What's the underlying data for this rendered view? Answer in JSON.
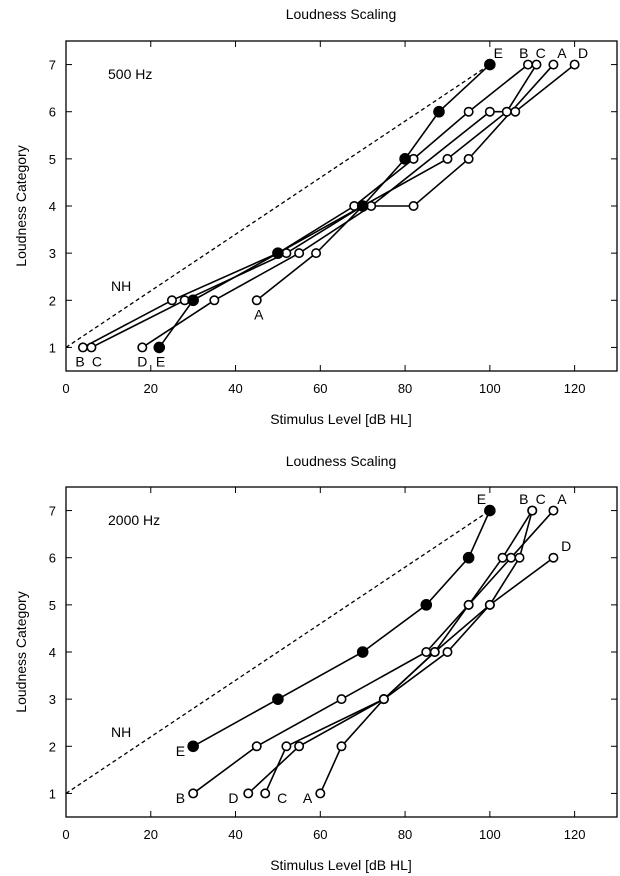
{
  "chart_data": [
    {
      "type": "line",
      "title": "Loudness Scaling",
      "subtitle": "500 Hz",
      "xlabel": "Stimulus Level [dB HL]",
      "ylabel": "Loudness Category",
      "xlim": [
        0,
        130
      ],
      "ylim": [
        0.5,
        7.5
      ],
      "xticks": [
        0,
        20,
        40,
        60,
        80,
        100,
        120
      ],
      "yticks": [
        1,
        2,
        3,
        4,
        5,
        6,
        7
      ],
      "reference": {
        "label": "NH",
        "x": [
          0,
          100
        ],
        "y": [
          1,
          7
        ],
        "style": "dashed"
      },
      "series": [
        {
          "name": "A",
          "filled": false,
          "x": [
            45,
            59,
            70,
            82,
            95,
            115
          ],
          "y": [
            2,
            3,
            4,
            4,
            5,
            7
          ]
        },
        {
          "name": "B",
          "filled": false,
          "x": [
            4,
            25,
            50,
            68,
            82,
            95,
            109
          ],
          "y": [
            1,
            2,
            3,
            4,
            5,
            6,
            7
          ]
        },
        {
          "name": "C",
          "filled": false,
          "x": [
            6,
            28,
            52,
            70,
            90,
            104,
            111
          ],
          "y": [
            1,
            2,
            3,
            4,
            5,
            6,
            7
          ]
        },
        {
          "name": "D",
          "filled": false,
          "x": [
            18,
            35,
            55,
            72,
            100,
            106,
            120
          ],
          "y": [
            1,
            2,
            3,
            4,
            6,
            6,
            7
          ]
        },
        {
          "name": "E",
          "filled": true,
          "x": [
            22,
            30,
            50,
            70,
            80,
            88,
            100
          ],
          "y": [
            1,
            2,
            3,
            4,
            5,
            6,
            7
          ]
        }
      ],
      "end_labels": [
        {
          "text": "A",
          "x": 45.5,
          "y": 1.7
        },
        {
          "text": "B",
          "x": 3.3,
          "y": 0.7
        },
        {
          "text": "C",
          "x": 7.3,
          "y": 0.7
        },
        {
          "text": "D",
          "x": 18,
          "y": 0.7
        },
        {
          "text": "E",
          "x": 22.3,
          "y": 0.7
        },
        {
          "text": "E",
          "x": 102,
          "y": 7.25
        },
        {
          "text": "B",
          "x": 108,
          "y": 7.25
        },
        {
          "text": "C",
          "x": 112,
          "y": 7.25
        },
        {
          "text": "A",
          "x": 117,
          "y": 7.25
        },
        {
          "text": "D",
          "x": 122,
          "y": 7.25
        },
        {
          "text": "NH",
          "x": 13,
          "y": 2.3
        }
      ]
    },
    {
      "type": "line",
      "title": "Loudness Scaling",
      "subtitle": "2000 Hz",
      "xlabel": "Stimulus Level [dB HL]",
      "ylabel": "Loudness Category",
      "xlim": [
        0,
        130
      ],
      "ylim": [
        0.5,
        7.5
      ],
      "xticks": [
        0,
        20,
        40,
        60,
        80,
        100,
        120
      ],
      "yticks": [
        1,
        2,
        3,
        4,
        5,
        6,
        7
      ],
      "reference": {
        "label": "NH",
        "x": [
          0,
          100
        ],
        "y": [
          1,
          7
        ],
        "style": "dashed"
      },
      "series": [
        {
          "name": "A",
          "filled": false,
          "x": [
            60,
            65,
            75,
            87,
            95,
            105,
            115
          ],
          "y": [
            1,
            2,
            3,
            4,
            5,
            6,
            7
          ]
        },
        {
          "name": "B",
          "filled": false,
          "x": [
            30,
            45,
            65,
            85,
            95,
            103,
            110
          ],
          "y": [
            1,
            2,
            3,
            4,
            5,
            6,
            7
          ]
        },
        {
          "name": "C",
          "filled": false,
          "x": [
            47,
            52,
            75,
            90,
            100,
            107,
            110
          ],
          "y": [
            1,
            2,
            3,
            4,
            5,
            6,
            7
          ]
        },
        {
          "name": "D",
          "filled": false,
          "x": [
            43,
            55,
            75,
            87,
            100,
            115
          ],
          "y": [
            1,
            2,
            3,
            4,
            5,
            6
          ]
        },
        {
          "name": "E",
          "filled": true,
          "x": [
            30,
            50,
            70,
            85,
            95,
            100
          ],
          "y": [
            2,
            3,
            4,
            5,
            6,
            7
          ]
        }
      ],
      "end_labels": [
        {
          "text": "B",
          "x": 27,
          "y": 0.9
        },
        {
          "text": "D",
          "x": 39.5,
          "y": 0.9
        },
        {
          "text": "C",
          "x": 51,
          "y": 0.9
        },
        {
          "text": "A",
          "x": 57,
          "y": 0.9
        },
        {
          "text": "E",
          "x": 27,
          "y": 1.9
        },
        {
          "text": "E",
          "x": 98,
          "y": 7.25
        },
        {
          "text": "B",
          "x": 108,
          "y": 7.25
        },
        {
          "text": "C",
          "x": 112,
          "y": 7.25
        },
        {
          "text": "A",
          "x": 117,
          "y": 7.25
        },
        {
          "text": "D",
          "x": 118,
          "y": 6.25
        },
        {
          "text": "NH",
          "x": 13,
          "y": 2.3
        }
      ]
    }
  ]
}
